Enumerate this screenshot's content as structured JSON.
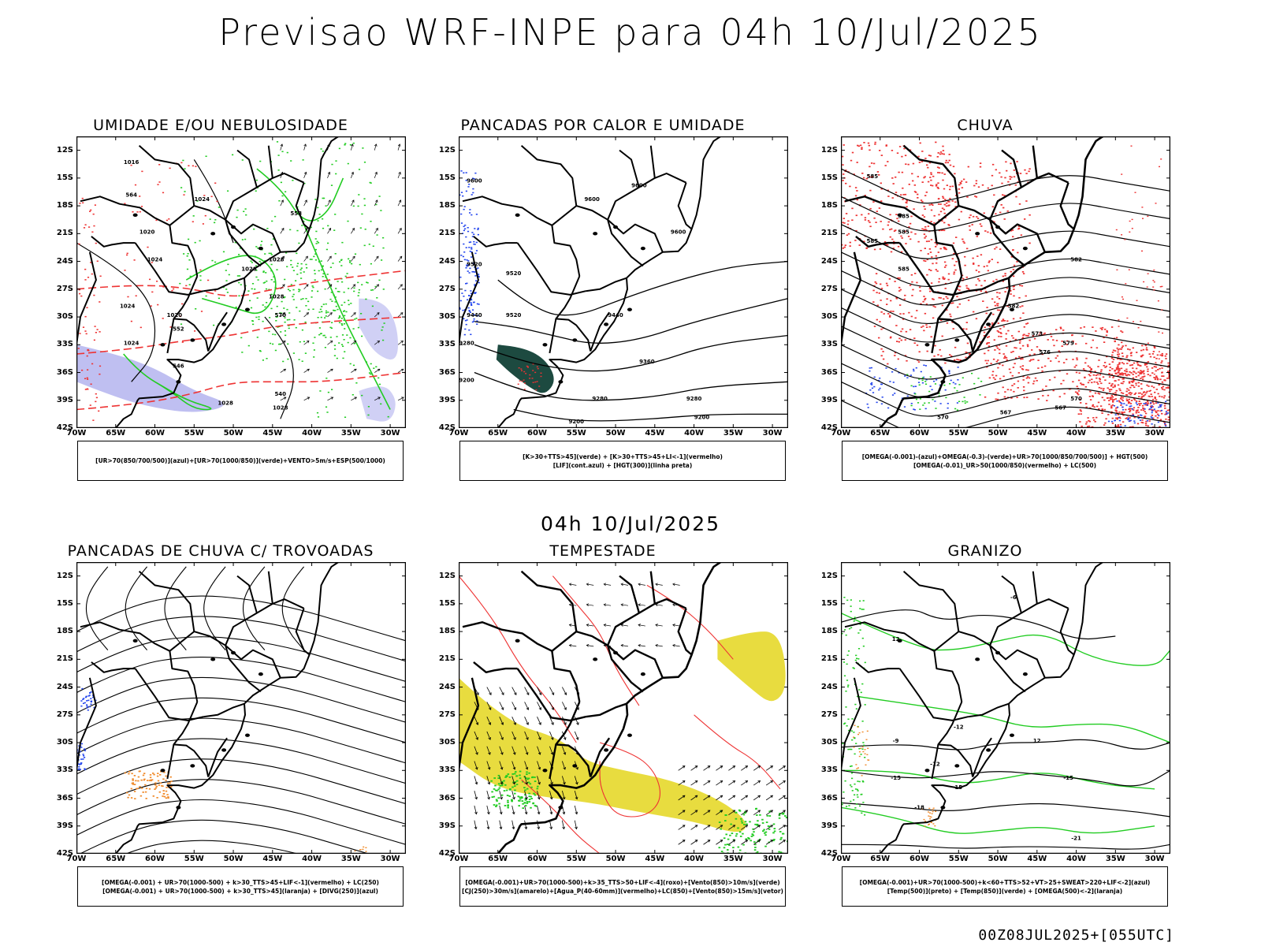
{
  "header": {
    "title": "Previsao WRF-INPE  para 04h 10/Jul/2025"
  },
  "mid_time": "04h 10/Jul/2025",
  "footer": "00Z08JUL2025+[055UTC]",
  "axes": {
    "lat_labels": [
      "12S",
      "15S",
      "18S",
      "21S",
      "24S",
      "27S",
      "30S",
      "33S",
      "36S",
      "39S",
      "42S"
    ],
    "lon_labels": [
      "70W",
      "65W",
      "60W",
      "55W",
      "50W",
      "45W",
      "40W",
      "35W",
      "30W"
    ]
  },
  "panels": [
    {
      "title": "UMIDADE E/OU NEBULOSIDADE",
      "legend": [
        "[UR>70(850/700/500)](azul)+[UR>70(1000/850)](verde)+VENTO>5m/s+ESP(500/1000)"
      ],
      "contour_labels": [
        "1016",
        "1020",
        "1024",
        "1024",
        "1028",
        "1028",
        "1028",
        "1020",
        "1024",
        "1024",
        "1028",
        "1028",
        "570",
        "564",
        "558",
        "552",
        "546",
        "540"
      ]
    },
    {
      "title": "PANCADAS POR CALOR E UMIDADE",
      "legend": [
        "[K>30+TTS>45](verde) + [K>30+TTS>45+LI<-1](vermelho)",
        "[LIF](cont.azul) + [HGT(300)](linha preta)"
      ],
      "contour_labels": [
        "9600",
        "9600",
        "9600",
        "9600",
        "9520",
        "9520",
        "9520",
        "9440",
        "9440",
        "9360",
        "9280",
        "9280",
        "9200",
        "9200",
        "9280",
        "9200"
      ]
    },
    {
      "title": "CHUVA",
      "legend": [
        "[OMEGA(-0.001)-(azul)+OMEGA(-0.3)-(verde)+UR>70(1000/850/700/500)] + HGT(500)",
        "[OMEGA(-0.01)_UR>50(1000/850)(vermelho) + LC(500)"
      ],
      "contour_labels": [
        "585",
        "585",
        "585",
        "585",
        "585",
        "582",
        "582",
        "579",
        "576",
        "573",
        "570",
        "567",
        "570",
        "567"
      ]
    },
    {
      "title": "PANCADAS DE CHUVA C/ TROVOADAS",
      "legend": [
        "[OMEGA(-0.001) + UR>70(1000-500) + k>30_TTS>45+LIF<-1](vermelho) + LC(250)",
        "[OMEGA(-0.001) + UR>70(1000-500) + k>30_TTS>45](laranja) + [DIVG(250)](azul)"
      ],
      "contour_labels": []
    },
    {
      "title": "TEMPESTADE",
      "legend": [
        "[OMEGA(-0.001)+UR>70(1000-500)+k>35_TTS>50+LIF<-4](roxo)+[Vento(850)>10m/s](verde)",
        "[CJ(250)>30m/s](amarelo)+[Agua_P(40-60mm)](vermelho)+LC(850)+[Vento(850)>15m/s](vetor)"
      ],
      "contour_labels": []
    },
    {
      "title": "GRANIZO",
      "legend": [
        "[OMEGA(-0.001)+UR>70(1000-500)+k<60+TTS>52+VT>25+SWEAT>220+LIF<-2](azul)",
        "[Temp(500)](preto) + [Temp(850)](verde) + [OMEGA(500)<-2](laranja)"
      ],
      "contour_labels": [
        "-6",
        "-9",
        "-12",
        "-12",
        "-15",
        "-15",
        "-18",
        "-21",
        "12",
        "12",
        "15"
      ]
    }
  ],
  "colors": {
    "land_outline": "#000000",
    "green": "#22cc22",
    "red": "#ee3333",
    "blue": "#2244ee",
    "yellow": "#e6d82a",
    "orange": "#f08a2a",
    "dark_green": "#1d4a40",
    "purple_shade": "#8a8ae6"
  }
}
